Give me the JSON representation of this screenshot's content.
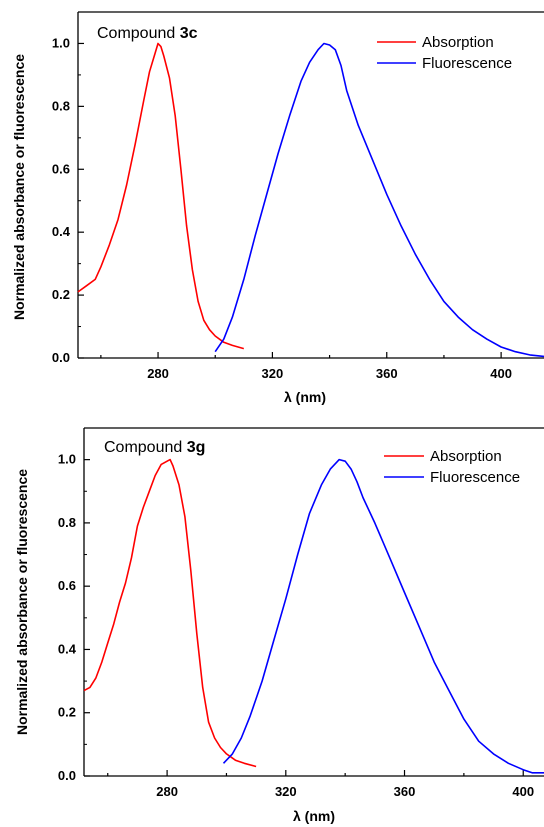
{
  "chart_data": [
    {
      "type": "line",
      "title_prefix": "Compound ",
      "title_bold": "3c",
      "xlabel": "λ (nm)",
      "ylabel": "Normalized absorbance or fluorescence",
      "xlim": [
        252,
        415
      ],
      "ylim": [
        0,
        1.1
      ],
      "xticks": [
        280,
        320,
        360,
        400
      ],
      "yticks": [
        0.0,
        0.2,
        0.4,
        0.6,
        0.8,
        1.0
      ],
      "ytick_labels": [
        "0.0",
        "0.2",
        "0.4",
        "0.6",
        "0.8",
        "1.0"
      ],
      "legend_position": "top-right",
      "series": [
        {
          "name": "Absorption",
          "color": "#ff0000",
          "x": [
            252,
            255,
            258,
            260,
            263,
            266,
            269,
            272,
            275,
            277,
            279,
            280,
            281,
            282,
            284,
            286,
            288,
            290,
            292,
            294,
            296,
            298,
            300,
            303,
            306,
            310
          ],
          "y": [
            0.21,
            0.23,
            0.25,
            0.29,
            0.36,
            0.44,
            0.55,
            0.68,
            0.82,
            0.91,
            0.97,
            1.0,
            0.99,
            0.96,
            0.89,
            0.77,
            0.6,
            0.42,
            0.28,
            0.18,
            0.12,
            0.09,
            0.07,
            0.05,
            0.04,
            0.03
          ]
        },
        {
          "name": "Fluorescence",
          "color": "#0000ff",
          "x": [
            300,
            303,
            306,
            310,
            314,
            318,
            322,
            326,
            330,
            333,
            336,
            338,
            340,
            342,
            344,
            346,
            350,
            355,
            360,
            365,
            370,
            375,
            380,
            385,
            390,
            395,
            400,
            405,
            410,
            415
          ],
          "y": [
            0.02,
            0.06,
            0.13,
            0.25,
            0.39,
            0.52,
            0.65,
            0.77,
            0.88,
            0.94,
            0.98,
            1.0,
            0.995,
            0.98,
            0.93,
            0.85,
            0.74,
            0.63,
            0.52,
            0.42,
            0.33,
            0.25,
            0.18,
            0.13,
            0.09,
            0.06,
            0.035,
            0.02,
            0.01,
            0.005
          ]
        }
      ]
    },
    {
      "type": "line",
      "title_prefix": "Compound ",
      "title_bold": "3g",
      "xlabel": "λ (nm)",
      "ylabel": "Normalized absorbance or fluorescence",
      "xlim": [
        252,
        407
      ],
      "ylim": [
        0,
        1.1
      ],
      "xticks": [
        280,
        320,
        360,
        400
      ],
      "yticks": [
        0.0,
        0.2,
        0.4,
        0.6,
        0.8,
        1.0
      ],
      "ytick_labels": [
        "0.0",
        "0.2",
        "0.4",
        "0.6",
        "0.8",
        "1.0"
      ],
      "legend_position": "top-right",
      "series": [
        {
          "name": "Absorption",
          "color": "#ff0000",
          "x": [
            252,
            254,
            256,
            258,
            260,
            262,
            264,
            266,
            268,
            270,
            272,
            274,
            276,
            278,
            280,
            281,
            282,
            284,
            286,
            288,
            290,
            292,
            294,
            296,
            298,
            300,
            303,
            306,
            310
          ],
          "y": [
            0.27,
            0.28,
            0.31,
            0.36,
            0.42,
            0.48,
            0.55,
            0.61,
            0.69,
            0.79,
            0.85,
            0.9,
            0.95,
            0.985,
            0.995,
            1.0,
            0.98,
            0.92,
            0.82,
            0.65,
            0.45,
            0.28,
            0.17,
            0.12,
            0.09,
            0.07,
            0.05,
            0.04,
            0.03
          ]
        },
        {
          "name": "Fluorescence",
          "color": "#0000ff",
          "x": [
            299,
            302,
            305,
            308,
            312,
            316,
            320,
            324,
            328,
            332,
            335,
            338,
            340,
            342,
            344,
            346,
            350,
            355,
            360,
            365,
            370,
            375,
            380,
            385,
            390,
            395,
            400,
            403,
            407
          ],
          "y": [
            0.04,
            0.07,
            0.12,
            0.19,
            0.3,
            0.43,
            0.56,
            0.7,
            0.83,
            0.92,
            0.97,
            1.0,
            0.995,
            0.97,
            0.93,
            0.88,
            0.8,
            0.69,
            0.58,
            0.47,
            0.36,
            0.27,
            0.18,
            0.11,
            0.07,
            0.04,
            0.02,
            0.01,
            0.01
          ]
        }
      ]
    }
  ]
}
